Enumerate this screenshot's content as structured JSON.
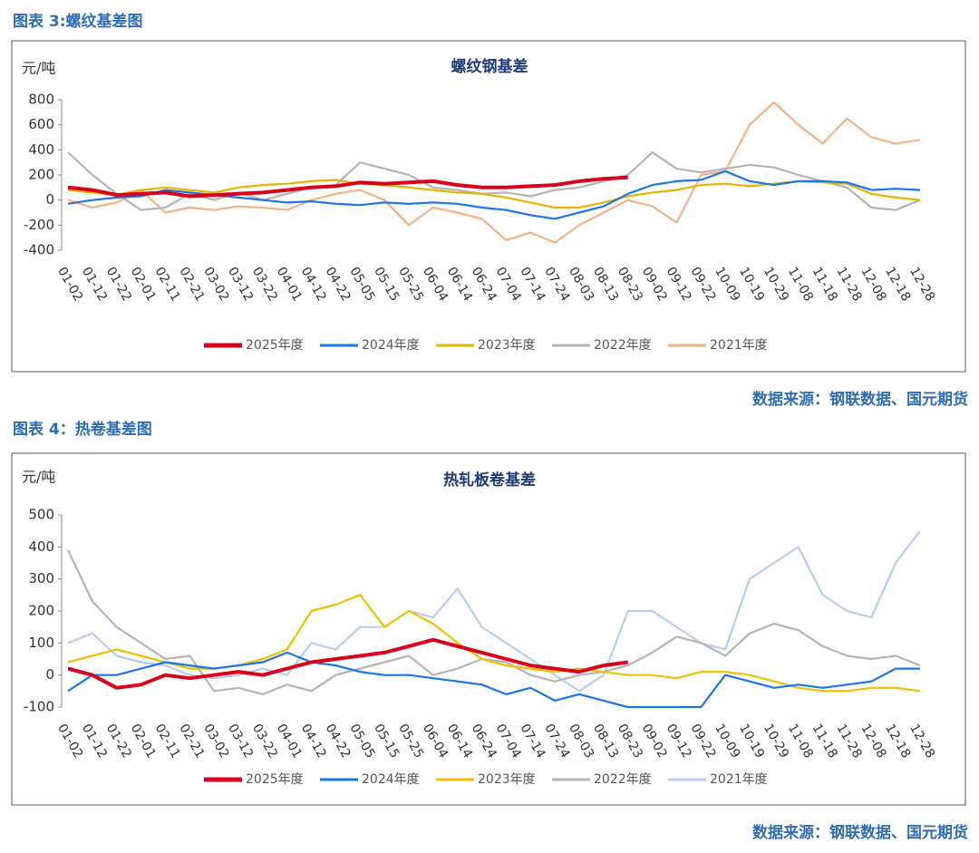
{
  "figure_titles": [
    "图表 3:螺纹基差图",
    "图表 4：热卷基差图"
  ],
  "sources": [
    "数据来源：钢联数据、国元期货",
    "数据来源：钢联数据、国元期货"
  ],
  "chart_data": [
    {
      "type": "line",
      "title": "螺纹钢基差",
      "y_label": "元/吨",
      "legend": "bottom",
      "categories": [
        "01-02",
        "01-12",
        "01-22",
        "02-01",
        "02-11",
        "02-21",
        "03-02",
        "03-12",
        "03-22",
        "04-01",
        "04-12",
        "04-22",
        "05-05",
        "05-15",
        "05-25",
        "06-04",
        "06-14",
        "06-24",
        "07-04",
        "07-14",
        "07-24",
        "08-03",
        "08-13",
        "08-23",
        "09-02",
        "09-12",
        "09-22",
        "10-09",
        "10-19",
        "10-29",
        "11-08",
        "11-18",
        "11-28",
        "12-08",
        "12-18",
        "12-28"
      ],
      "ylim": [
        -400,
        800
      ],
      "yticks": [
        -400,
        -200,
        0,
        200,
        400,
        600,
        800
      ],
      "series": [
        {
          "name": "2025年度",
          "color": "#d9001b",
          "values": [
            100,
            80,
            40,
            50,
            60,
            30,
            40,
            50,
            60,
            80,
            100,
            110,
            140,
            130,
            140,
            150,
            120,
            100,
            100,
            110,
            120,
            150,
            170,
            180,
            null,
            null,
            null,
            null,
            null,
            null,
            null,
            null,
            null,
            null,
            null,
            null
          ]
        },
        {
          "name": "2024年度",
          "color": "#1a75e8",
          "values": [
            -30,
            0,
            20,
            30,
            80,
            60,
            40,
            20,
            0,
            -20,
            -10,
            -30,
            -40,
            -20,
            -30,
            -20,
            -30,
            -60,
            -80,
            -120,
            -150,
            -100,
            -50,
            50,
            120,
            150,
            160,
            230,
            150,
            120,
            150,
            150,
            140,
            80,
            90,
            80
          ]
        },
        {
          "name": "2023年度",
          "color": "#e6b400",
          "values": [
            80,
            60,
            40,
            80,
            100,
            80,
            60,
            100,
            120,
            130,
            150,
            160,
            130,
            120,
            100,
            80,
            60,
            50,
            20,
            -20,
            -60,
            -60,
            -20,
            30,
            60,
            80,
            120,
            130,
            110,
            130,
            150,
            140,
            130,
            50,
            20,
            0
          ]
        },
        {
          "name": "2022年度",
          "color": "#b4b4b4",
          "values": [
            380,
            200,
            50,
            -80,
            -60,
            50,
            0,
            60,
            0,
            50,
            100,
            120,
            300,
            250,
            200,
            100,
            80,
            50,
            60,
            30,
            80,
            100,
            150,
            200,
            380,
            250,
            220,
            250,
            280,
            260,
            200,
            150,
            100,
            -60,
            -80,
            0
          ]
        },
        {
          "name": "2021年度",
          "color": "#f6b183",
          "values": [
            0,
            -60,
            -20,
            80,
            -100,
            -60,
            -80,
            -50,
            -60,
            -80,
            0,
            50,
            80,
            0,
            -200,
            -60,
            -100,
            -150,
            -320,
            -260,
            -340,
            -200,
            -100,
            0,
            -50,
            -180,
            200,
            230,
            600,
            780,
            600,
            450,
            650,
            500,
            450,
            480
          ]
        }
      ]
    },
    {
      "type": "line",
      "title": "热轧板卷基差",
      "y_label": "元/吨",
      "legend": "bottom",
      "categories": [
        "01-02",
        "01-12",
        "01-22",
        "02-01",
        "02-11",
        "02-21",
        "03-02",
        "03-12",
        "03-22",
        "04-01",
        "04-12",
        "04-22",
        "05-05",
        "05-15",
        "05-25",
        "06-04",
        "06-14",
        "06-24",
        "07-04",
        "07-14",
        "07-24",
        "08-03",
        "08-13",
        "08-23",
        "09-02",
        "09-12",
        "09-22",
        "10-09",
        "10-19",
        "10-29",
        "11-08",
        "11-18",
        "11-28",
        "12-08",
        "12-18",
        "12-28"
      ],
      "ylim": [
        -100,
        500
      ],
      "yticks": [
        -100,
        0,
        100,
        200,
        300,
        400,
        500
      ],
      "series": [
        {
          "name": "2025年度",
          "color": "#d9001b",
          "values": [
            20,
            0,
            -40,
            -30,
            0,
            -10,
            0,
            10,
            0,
            20,
            40,
            50,
            60,
            70,
            90,
            110,
            90,
            70,
            50,
            30,
            20,
            10,
            30,
            40,
            null,
            null,
            null,
            null,
            null,
            null,
            null,
            null,
            null,
            null,
            null,
            null
          ]
        },
        {
          "name": "2024年度",
          "color": "#1a75e8",
          "values": [
            -50,
            0,
            0,
            20,
            40,
            30,
            20,
            30,
            40,
            70,
            40,
            30,
            10,
            0,
            0,
            -10,
            -20,
            -30,
            -60,
            -40,
            -80,
            -60,
            -80,
            -100,
            -100,
            -100,
            -100,
            0,
            -20,
            -40,
            -30,
            -40,
            -30,
            -20,
            20,
            20
          ]
        },
        {
          "name": "2023年度",
          "color": "#f0c000",
          "values": [
            40,
            60,
            80,
            60,
            40,
            20,
            20,
            30,
            50,
            80,
            200,
            220,
            250,
            150,
            200,
            160,
            100,
            50,
            30,
            20,
            10,
            20,
            10,
            0,
            0,
            -10,
            10,
            10,
            0,
            -20,
            -40,
            -50,
            -50,
            -40,
            -40,
            -50
          ]
        },
        {
          "name": "2022年度",
          "color": "#b4b4b4",
          "values": [
            390,
            230,
            150,
            100,
            50,
            60,
            -50,
            -40,
            -60,
            -30,
            -50,
            0,
            20,
            40,
            60,
            0,
            20,
            50,
            40,
            0,
            -20,
            0,
            10,
            30,
            70,
            120,
            100,
            60,
            130,
            160,
            140,
            90,
            60,
            50,
            60,
            30
          ]
        },
        {
          "name": "2021年度",
          "color": "#b8cbf0",
          "values": [
            100,
            130,
            60,
            40,
            30,
            0,
            -10,
            0,
            20,
            0,
            100,
            80,
            150,
            150,
            200,
            180,
            270,
            150,
            100,
            50,
            0,
            -50,
            0,
            200,
            200,
            150,
            100,
            80,
            300,
            350,
            400,
            250,
            200,
            180,
            350,
            450
          ]
        }
      ]
    }
  ]
}
